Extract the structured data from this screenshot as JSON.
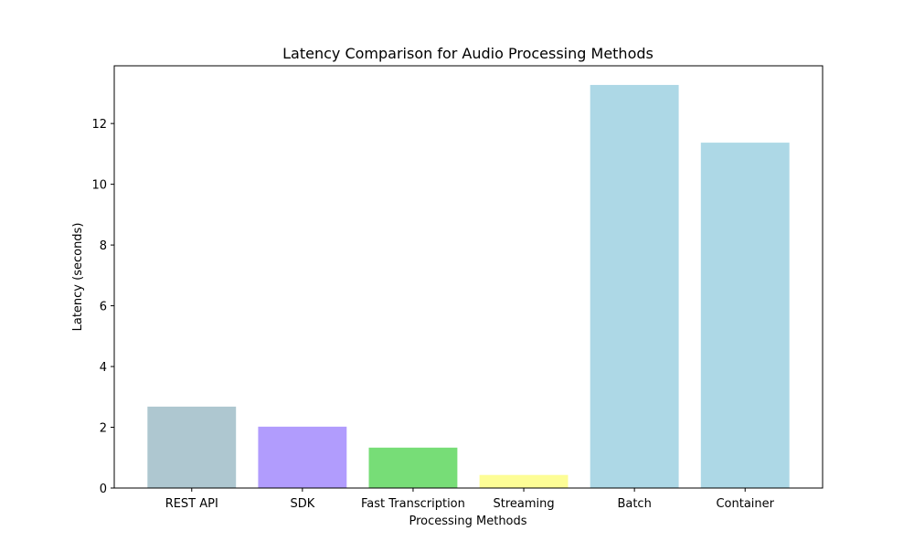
{
  "chart_data": {
    "type": "bar",
    "title": "Latency Comparison for Audio Processing Methods",
    "xlabel": "Processing Methods",
    "ylabel": "Latency (seconds)",
    "categories": [
      "REST API",
      "SDK",
      "Fast Transcription",
      "Streaming",
      "Batch",
      "Container"
    ],
    "values": [
      2.68,
      2.02,
      1.33,
      0.43,
      13.27,
      11.37
    ],
    "colors": [
      "#aec7d0",
      "#b19cfd",
      "#77dd77",
      "#fdfd96",
      "#add8e6",
      "#add8e6"
    ],
    "ylim": [
      0,
      13.9
    ],
    "yticks": [
      0,
      2,
      4,
      6,
      8,
      10,
      12
    ],
    "grid": false,
    "legend": "none"
  }
}
